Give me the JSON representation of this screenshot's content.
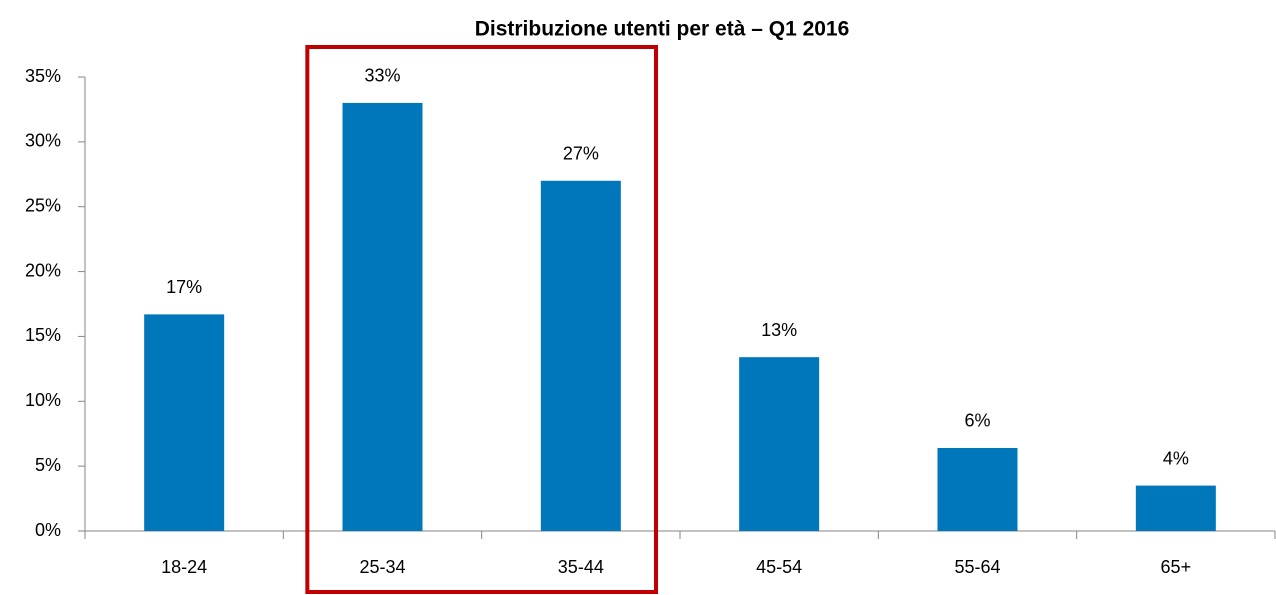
{
  "chart_data": {
    "type": "bar",
    "title": "Distribuzione utenti per età – Q1 2016",
    "categories": [
      "18-24",
      "25-34",
      "35-44",
      "45-54",
      "55-64",
      "65+"
    ],
    "values": [
      16.7,
      33,
      27,
      13.4,
      6.4,
      3.5
    ],
    "value_labels": [
      "17%",
      "33%",
      "27%",
      "13%",
      "6%",
      "4%"
    ],
    "color": "#0077bb",
    "ylim": [
      0,
      35
    ],
    "yticks": [
      {
        "value": 0,
        "label": "0%"
      },
      {
        "value": 5,
        "label": "5%"
      },
      {
        "value": 10,
        "label": "10%"
      },
      {
        "value": 15,
        "label": "15%"
      },
      {
        "value": 20,
        "label": "20%"
      },
      {
        "value": 25,
        "label": "25%"
      },
      {
        "value": 30,
        "label": "30%"
      },
      {
        "value": 35,
        "label": "35%"
      }
    ],
    "grid": false,
    "highlight": {
      "from": "25-34",
      "to": "35-44",
      "color": "#c00000"
    }
  }
}
